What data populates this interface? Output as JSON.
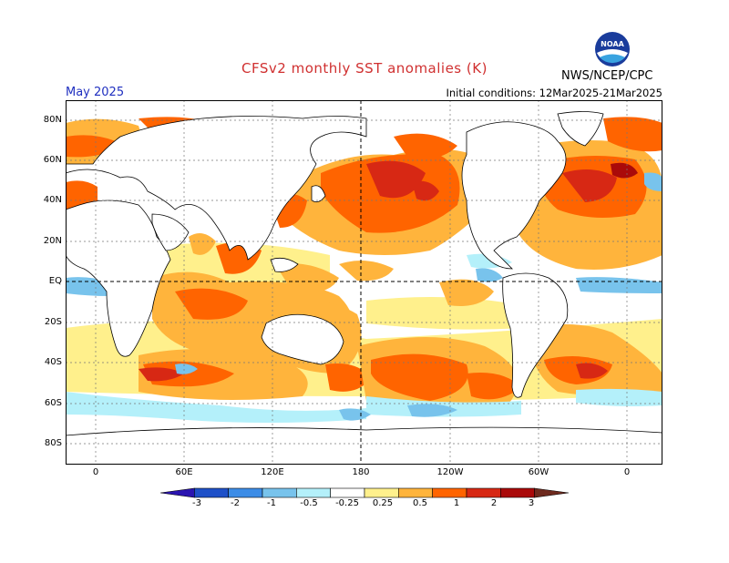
{
  "title": "CFSv2 monthly SST anomalies (K)",
  "agency": "NWS/NCEP/CPC",
  "logo_text": "NOAA",
  "forecast_month": "May 2025",
  "initial_conditions": "Initial conditions: 12Mar2025-21Mar2025",
  "lat_labels": [
    "80N",
    "60N",
    "40N",
    "20N",
    "EQ",
    "20S",
    "40S",
    "60S",
    "80S"
  ],
  "lon_labels": [
    "0",
    "60E",
    "120E",
    "180",
    "120W",
    "60W",
    "0"
  ],
  "colorbar": {
    "labels": [
      "-3",
      "-2",
      "-1",
      "-0.5",
      "-0.25",
      "0.25",
      "0.5",
      "1",
      "2",
      "3"
    ],
    "colors": [
      "#2a14b0",
      "#1e50c8",
      "#3c8ce6",
      "#78c3ec",
      "#b4f0fa",
      "#ffffff",
      "#fff08c",
      "#ffb43c",
      "#ff6400",
      "#d72814",
      "#aa0a0a",
      "#6e2a1e"
    ]
  }
}
